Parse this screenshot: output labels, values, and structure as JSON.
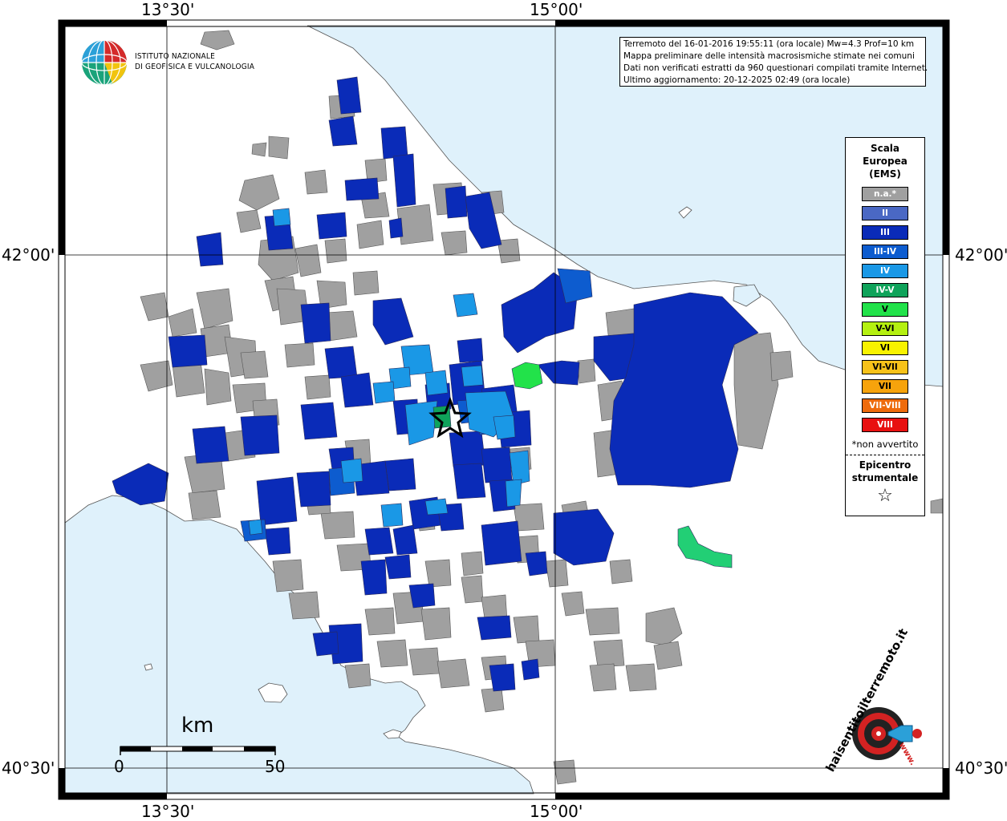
{
  "coordinates": {
    "top": [
      "13°30'",
      "15°00'"
    ],
    "bottom": [
      "13°30'",
      "15°00'"
    ],
    "left": [
      "42°00'",
      "40°30'"
    ],
    "right": [
      "42°00'",
      "40°30'"
    ]
  },
  "info": {
    "line1": "Terremoto del 16-01-2016 19:55:11 (ora locale) Mw=4.3 Prof=10 km",
    "line2": "Mappa preliminare delle intensità macrosismiche stimate nei comuni",
    "line3": "Dati non verificati estratti da 960 questionari compilati tramite Internet.",
    "line4": "Ultimo aggiornamento: 20-12-2025 02:49 (ora locale)"
  },
  "logo": {
    "line1": "ISTITUTO NAZIONALE",
    "line2": "DI GEOFISICA E VULCANOLOGIA"
  },
  "legend": {
    "title_l1": "Scala",
    "title_l2": "Europea",
    "title_l3": "(EMS)",
    "items": [
      {
        "label": "n.a.*",
        "color": "#a0a0a0",
        "text_color": "#ffffff"
      },
      {
        "label": "II",
        "color": "#4a68c4",
        "text_color": "#ffffff"
      },
      {
        "label": "III",
        "color": "#0a2bb8",
        "text_color": "#ffffff"
      },
      {
        "label": "III-IV",
        "color": "#0d5ccf",
        "text_color": "#ffffff"
      },
      {
        "label": "IV",
        "color": "#1a98e6",
        "text_color": "#ffffff"
      },
      {
        "label": "IV-V",
        "color": "#0fa35a",
        "text_color": "#ffffff"
      },
      {
        "label": "V",
        "color": "#22e24a",
        "text_color": "#000000"
      },
      {
        "label": "V-VI",
        "color": "#b4f010",
        "text_color": "#000000"
      },
      {
        "label": "VI",
        "color": "#f8f200",
        "text_color": "#000000"
      },
      {
        "label": "VI-VII",
        "color": "#f7c21a",
        "text_color": "#000000"
      },
      {
        "label": "VII",
        "color": "#f7a30c",
        "text_color": "#000000"
      },
      {
        "label": "VII-VIII",
        "color": "#ee6b0c",
        "text_color": "#ffffff"
      },
      {
        "label": "VIII",
        "color": "#e81010",
        "text_color": "#ffffff"
      }
    ],
    "note": "*non avvertito",
    "epicenter_l1": "Epicentro",
    "epicenter_l2": "strumentale",
    "epicenter_symbol": "☆"
  },
  "scalebar": {
    "unit": "km",
    "min": "0",
    "max": "50"
  },
  "hsit_logo": {
    "text": "haisentitoilterremoto.it",
    "url_text": "www.",
    "accent": "#d32222"
  },
  "colors": {
    "sea": "#dff1fb",
    "na": "#a0a0a0",
    "ems3": "#0a2bb8",
    "ems4": "#1a98e6",
    "ems45": "#0fa35a",
    "ems5": "#22e24a",
    "ems34": "#0d5ccf"
  }
}
